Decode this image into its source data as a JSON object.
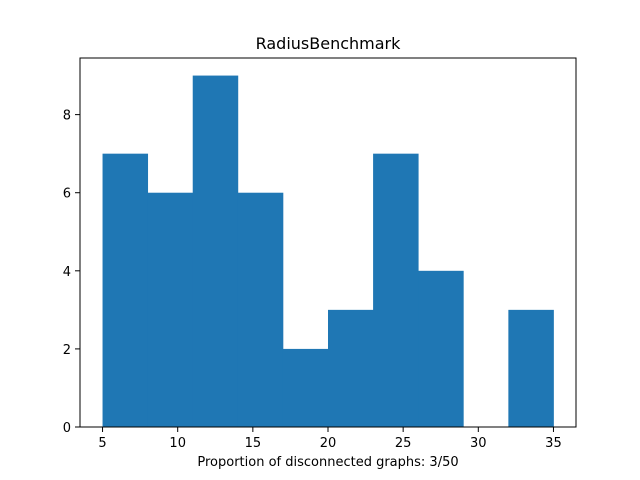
{
  "chart_data": {
    "type": "bar",
    "subtype": "histogram",
    "title": "RadiusBenchmark",
    "xlabel": "Proportion of disconnected graphs: 3/50",
    "ylabel": "",
    "bins": [
      {
        "x0": 5,
        "x1": 8,
        "count": 7
      },
      {
        "x0": 8,
        "x1": 11,
        "count": 6
      },
      {
        "x0": 11,
        "x1": 14,
        "count": 9
      },
      {
        "x0": 14,
        "x1": 17,
        "count": 6
      },
      {
        "x0": 17,
        "x1": 20,
        "count": 2
      },
      {
        "x0": 20,
        "x1": 23,
        "count": 3
      },
      {
        "x0": 23,
        "x1": 26,
        "count": 7
      },
      {
        "x0": 26,
        "x1": 29,
        "count": 4
      },
      {
        "x0": 29,
        "x1": 32,
        "count": 0
      },
      {
        "x0": 32,
        "x1": 35,
        "count": 3
      }
    ],
    "xlim": [
      3.5,
      36.5
    ],
    "ylim": [
      0,
      9.45
    ],
    "xticks": [
      5,
      10,
      15,
      20,
      25,
      30,
      35
    ],
    "yticks": [
      0,
      2,
      4,
      6,
      8
    ],
    "bar_color": "#1f77b4",
    "grid": false
  }
}
